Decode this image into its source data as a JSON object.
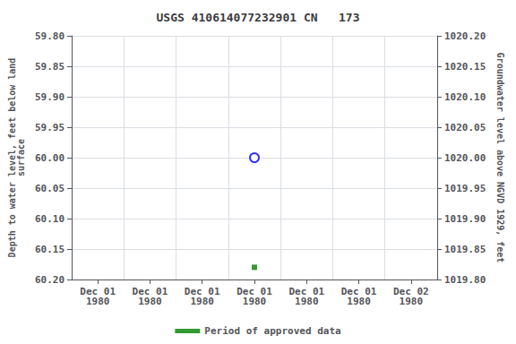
{
  "chart_data": {
    "type": "scatter",
    "title": "USGS 410614077232901 CN   173",
    "y_label": "Depth to water level, feet below land\nsurface",
    "y2_label": "Groundwater level above NGVD 1929, feet",
    "categories": [
      "Dec 01\n1980",
      "Dec 01\n1980",
      "Dec 01\n1980",
      "Dec 01\n1980",
      "Dec 01\n1980",
      "Dec 01\n1980",
      "Dec 02\n1980"
    ],
    "series": [
      {
        "color": "blue",
        "marker": "open_circle",
        "values": [
          null,
          null,
          null,
          60.0,
          null,
          null,
          null
        ]
      },
      {
        "name": "Period of approved data",
        "color": "#008000",
        "marker": "square",
        "values": [
          null,
          null,
          null,
          60.18,
          null,
          null,
          null
        ]
      }
    ],
    "ylim": [
      60.2,
      59.8
    ],
    "yticks": [
      {
        "value": 59.8,
        "label": "59.80"
      },
      {
        "value": 59.85,
        "label": "59.85"
      },
      {
        "value": 59.9,
        "label": "59.90"
      },
      {
        "value": 59.95,
        "label": "59.95"
      },
      {
        "value": 60.0,
        "label": "60.00"
      },
      {
        "value": 60.05,
        "label": "60.05"
      },
      {
        "value": 60.1,
        "label": "60.10"
      },
      {
        "value": 60.15,
        "label": "60.15"
      },
      {
        "value": 60.2,
        "label": "60.20"
      }
    ],
    "y2lim": [
      1019.8,
      1020.2
    ],
    "y2ticks": [
      {
        "value": 1019.8,
        "label": "1019.80"
      },
      {
        "value": 1019.85,
        "label": "1019.85"
      },
      {
        "value": 1019.9,
        "label": "1019.90"
      },
      {
        "value": 1019.95,
        "label": "1019.95"
      },
      {
        "value": 1020.0,
        "label": "1020.00"
      },
      {
        "value": 1020.05,
        "label": "1020.05"
      },
      {
        "value": 1020.1,
        "label": "1020.10"
      },
      {
        "value": 1020.15,
        "label": "1020.15"
      },
      {
        "value": 1020.2,
        "label": "1020.20"
      }
    ],
    "grid": true,
    "legend": "bottom"
  }
}
